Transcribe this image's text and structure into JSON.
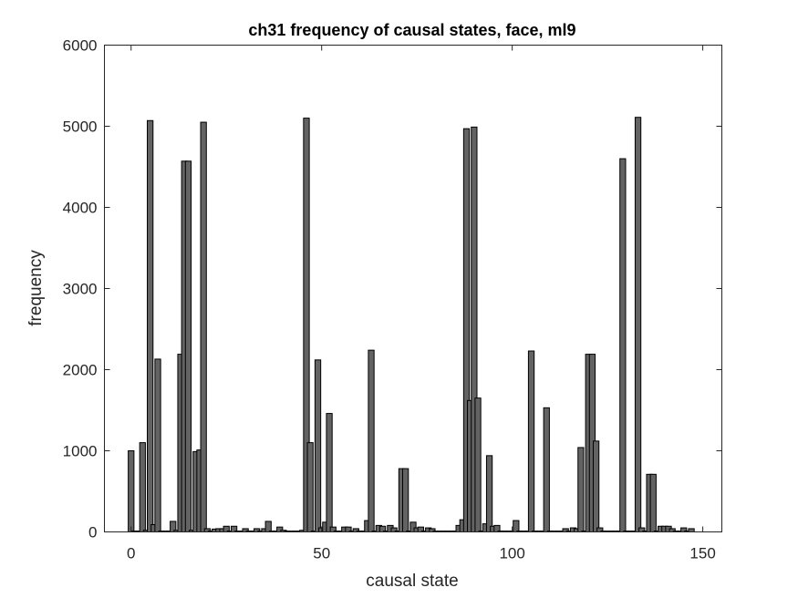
{
  "chart_data": {
    "type": "bar",
    "title": "ch31 frequency of causal states, face, ml9",
    "xlabel": "causal state",
    "ylabel": "frequency",
    "xlim": [
      -7,
      155
    ],
    "ylim": [
      0,
      6000
    ],
    "xticks": [
      0,
      50,
      100,
      150
    ],
    "yticks": [
      0,
      1000,
      2000,
      3000,
      4000,
      5000,
      6000
    ],
    "bar_width": 1.5,
    "grid": false,
    "colors": {
      "bar_fill": "#636363",
      "bar_edge": "#000000",
      "axes": "#262626"
    },
    "x": [
      0,
      1,
      2,
      3,
      4,
      5,
      6,
      7,
      8,
      9,
      10,
      11,
      12,
      13,
      14,
      15,
      16,
      17,
      18,
      19,
      20,
      21,
      22,
      23,
      24,
      25,
      26,
      27,
      28,
      29,
      30,
      31,
      32,
      33,
      34,
      35,
      36,
      37,
      38,
      39,
      40,
      41,
      42,
      43,
      44,
      45,
      46,
      47,
      48,
      49,
      50,
      51,
      52,
      53,
      54,
      55,
      56,
      57,
      58,
      59,
      60,
      61,
      62,
      63,
      64,
      65,
      66,
      67,
      68,
      69,
      70,
      71,
      72,
      73,
      74,
      75,
      76,
      77,
      78,
      79,
      80,
      81,
      82,
      83,
      84,
      85,
      86,
      87,
      88,
      89,
      90,
      91,
      92,
      93,
      94,
      95,
      96,
      97,
      98,
      99,
      100,
      101,
      102,
      103,
      104,
      105,
      106,
      107,
      108,
      109,
      110,
      111,
      112,
      113,
      114,
      115,
      116,
      117,
      118,
      119,
      120,
      121,
      122,
      123,
      124,
      125,
      126,
      127,
      128,
      129,
      130,
      131,
      132,
      133,
      134,
      135,
      136,
      137,
      138,
      139,
      140,
      141,
      142,
      143,
      144,
      145,
      146,
      147
    ],
    "values": [
      1000,
      10,
      10,
      1100,
      20,
      5070,
      90,
      2130,
      10,
      10,
      10,
      130,
      20,
      2190,
      4570,
      4570,
      20,
      990,
      1010,
      5050,
      40,
      10,
      35,
      40,
      40,
      70,
      10,
      70,
      10,
      10,
      40,
      10,
      10,
      40,
      10,
      40,
      130,
      10,
      10,
      60,
      20,
      10,
      10,
      10,
      10,
      20,
      5100,
      1100,
      10,
      2120,
      50,
      120,
      1460,
      60,
      10,
      10,
      60,
      60,
      10,
      40,
      10,
      10,
      140,
      2240,
      10,
      80,
      70,
      10,
      80,
      50,
      10,
      780,
      780,
      10,
      120,
      50,
      60,
      10,
      50,
      40,
      10,
      10,
      10,
      10,
      10,
      10,
      80,
      150,
      4970,
      1620,
      4990,
      1650,
      10,
      100,
      940,
      70,
      80,
      10,
      10,
      10,
      10,
      140,
      10,
      10,
      10,
      2230,
      10,
      10,
      10,
      1530,
      10,
      10,
      10,
      10,
      40,
      10,
      50,
      40,
      1040,
      10,
      2190,
      2190,
      1120,
      50,
      10,
      10,
      10,
      10,
      10,
      4600,
      10,
      10,
      10,
      5110,
      50,
      10,
      710,
      710,
      10,
      70,
      70,
      70,
      40,
      10,
      10,
      50,
      10,
      40
    ]
  }
}
